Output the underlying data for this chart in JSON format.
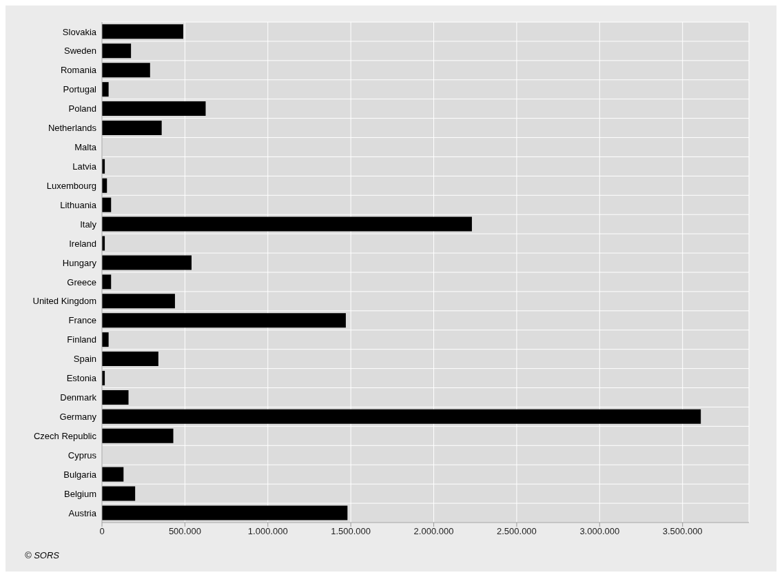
{
  "chart_data": {
    "type": "bar",
    "orientation": "horizontal",
    "categories": [
      "Slovakia",
      "Sweden",
      "Romania",
      "Portugal",
      "Poland",
      "Netherlands",
      "Malta",
      "Latvia",
      "Luxembourg",
      "Lithuania",
      "Italy",
      "Ireland",
      "Hungary",
      "Greece",
      "United Kingdom",
      "France",
      "Finland",
      "Spain",
      "Estonia",
      "Denmark",
      "Germany",
      "Czech Republic",
      "Cyprus",
      "Bulgaria",
      "Belgium",
      "Austria"
    ],
    "values": [
      490000,
      175000,
      290000,
      40000,
      625000,
      360000,
      0,
      17000,
      30000,
      55000,
      2230000,
      17000,
      540000,
      55000,
      440000,
      1470000,
      40000,
      340000,
      17000,
      160000,
      3610000,
      430000,
      0,
      130000,
      200000,
      1480000
    ],
    "color": "#000000",
    "xlim": [
      0,
      3900000
    ],
    "xticks": [
      0,
      {
        "value": 500000,
        "label": "500.000"
      },
      {
        "value": 1000000,
        "label": "1.000.000"
      },
      {
        "value": 1500000,
        "label": "1.500.000"
      },
      {
        "value": 2000000,
        "label": "2.000.000"
      },
      {
        "value": 2500000,
        "label": "2.500.000"
      },
      {
        "value": 3000000,
        "label": "3.000.000"
      },
      {
        "value": 3500000,
        "label": "3.500.000"
      }
    ],
    "grid": true,
    "annotations": [
      "© SORS"
    ]
  }
}
